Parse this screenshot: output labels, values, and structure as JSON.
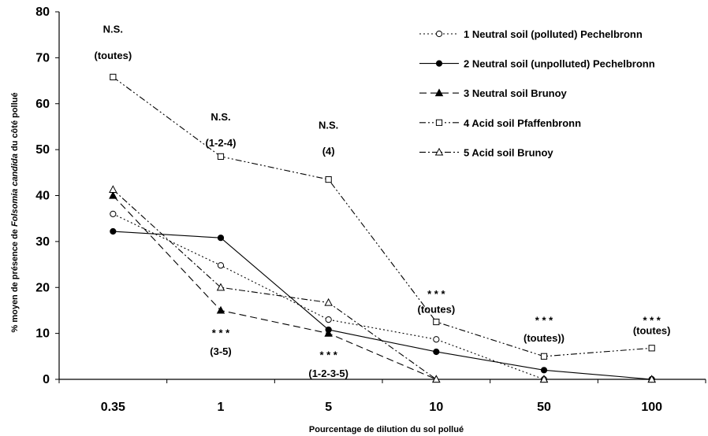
{
  "chart_data": {
    "type": "line",
    "xlabel": "Pourcentage de dilution du sol pollué",
    "ylabel_parts": [
      "% moyen de présence de ",
      "Folsomia candida",
      " du côté pollué"
    ],
    "ylim": [
      0,
      80
    ],
    "yticks": [
      "0",
      "10",
      "20",
      "30",
      "40",
      "50",
      "60",
      "70",
      "80"
    ],
    "categories": [
      "0.35",
      "1",
      "5",
      "10",
      "50",
      "100"
    ],
    "legend_position": "top-right",
    "series": [
      {
        "name": "1 Neutral soil (polluted) Pechelbronn",
        "values": [
          36,
          24.8,
          13,
          8.7,
          0,
          0
        ],
        "dash": "2,3",
        "marker": "circle-open"
      },
      {
        "name": "2 Neutral soil (unpolluted) Pechelbronn",
        "values": [
          32.2,
          30.8,
          10.8,
          6,
          2,
          0
        ],
        "dash": "",
        "marker": "circle-filled"
      },
      {
        "name": "3 Neutral soil Brunoy",
        "values": [
          40,
          15,
          10,
          0,
          0,
          0
        ],
        "dash": "9,5",
        "marker": "triangle-filled"
      },
      {
        "name": "4 Acid soil Pfaffenbronn",
        "values": [
          65.8,
          48.5,
          43.5,
          12.5,
          5,
          6.8
        ],
        "dash": "8,3,2,3,2,3",
        "marker": "square-open"
      },
      {
        "name": "5 Acid soil Brunoy",
        "values": [
          41.3,
          20,
          16.7,
          0,
          0,
          0
        ],
        "dash": "8,3,2,3",
        "marker": "triangle-open"
      }
    ],
    "annotations": [
      {
        "text": "N.S.",
        "cat": 0,
        "y": 76.3
      },
      {
        "text": "(toutes)",
        "cat": 0,
        "y": 70.6
      },
      {
        "text": "N.S.",
        "cat": 1,
        "y": 57.2
      },
      {
        "text": "(1-2-4)",
        "cat": 1,
        "y": 51.6
      },
      {
        "text": "N.S.",
        "cat": 2,
        "y": 55.4
      },
      {
        "text": "(4)",
        "cat": 2,
        "y": 49.8
      },
      {
        "text": "* * *",
        "cat": 3,
        "y": 18.7
      },
      {
        "text": "(toutes)",
        "cat": 3,
        "y": 15.3
      },
      {
        "text": "* * *",
        "cat": 4,
        "y": 12.9
      },
      {
        "text": "(toutes))",
        "cat": 4,
        "y": 9.1
      },
      {
        "text": "* * *",
        "cat": 5,
        "y": 12.9
      },
      {
        "text": "(toutes)",
        "cat": 5,
        "y": 10.7
      },
      {
        "text": "* * *",
        "cat": 1,
        "y": 10.2
      },
      {
        "text": "(3-5)",
        "cat": 1,
        "y": 6.2
      },
      {
        "text": "* * *",
        "cat": 2,
        "y": 5.4
      },
      {
        "text": "(1-2-3-5)",
        "cat": 2,
        "y": 1.4
      }
    ]
  }
}
